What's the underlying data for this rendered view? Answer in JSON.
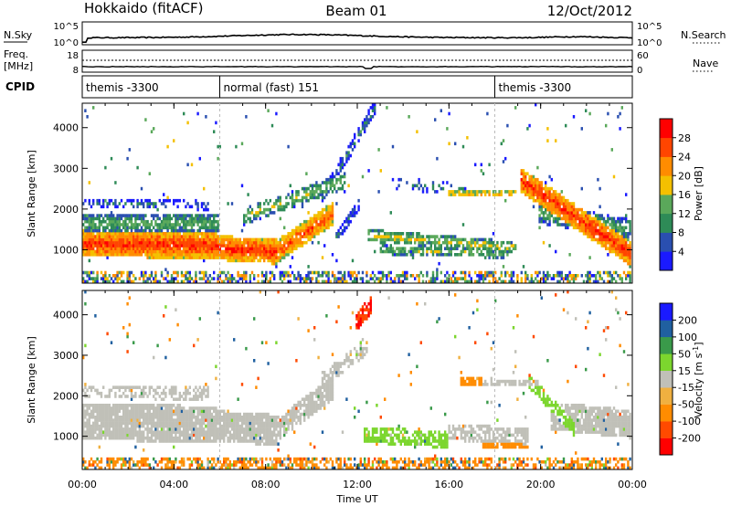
{
  "header": {
    "station": "Hokkaido (fitACF)",
    "beam": "Beam 01",
    "date": "12/Oct/2012"
  },
  "strip": {
    "nsky_label": "N.Sky",
    "nsky_top": "10^5",
    "nsky_bottom": "10^0",
    "nsearch_label": "N.Search",
    "nsearch_top": "10^5",
    "nsearch_bottom": "10^0",
    "freq_label": "Freq.",
    "freq_unit": "[MHz]",
    "freq_top": "18",
    "freq_bottom": "8",
    "nave_label": "Nave",
    "nave_top": "60",
    "nave_bottom": "0",
    "cpid_label": "CPID",
    "cpid_segments": [
      {
        "label": "themis -3300",
        "start_hour": 0
      },
      {
        "label": "normal (fast) 151",
        "start_hour": 6
      },
      {
        "label": "themis -3300",
        "start_hour": 18
      }
    ]
  },
  "colors": {
    "power": [
      "#1a1aff",
      "#2a4fb0",
      "#2e8b57",
      "#5aa85a",
      "#f4c000",
      "#ff8c00",
      "#ff4500",
      "#ff0000"
    ],
    "velocity": [
      "#ff0000",
      "#ff4a00",
      "#ff8c00",
      "#f0b040",
      "#c0c0b8",
      "#7cd62e",
      "#3a9a4a",
      "#2060a0",
      "#1a1aff"
    ]
  },
  "chart_data": [
    {
      "type": "heatmap",
      "panel": "power",
      "xlabel": "Time UT",
      "ylabel": "Slant Range [km]",
      "xlim": [
        0,
        24
      ],
      "ylim": [
        180,
        4600
      ],
      "x_ticks": [
        "00:00",
        "04:00",
        "08:00",
        "12:00",
        "16:00",
        "20:00",
        "00:00"
      ],
      "y_ticks": [
        "1000",
        "2000",
        "3000",
        "4000"
      ],
      "colorbar": {
        "label": "Power [dB]",
        "ticks": [
          "28",
          "24",
          "20",
          "16",
          "12",
          "8",
          "4"
        ],
        "range": [
          0,
          30
        ]
      }
    },
    {
      "type": "heatmap",
      "panel": "velocity",
      "xlabel": "Time UT",
      "ylabel": "Slant Range [km]",
      "xlim": [
        0,
        24
      ],
      "ylim": [
        180,
        4600
      ],
      "x_ticks": [
        "00:00",
        "04:00",
        "08:00",
        "12:00",
        "16:00",
        "20:00",
        "00:00"
      ],
      "y_ticks": [
        "1000",
        "2000",
        "3000",
        "4000"
      ],
      "colorbar": {
        "label": "Velocity [m s",
        "label_sup": "-1",
        "label_end": "]",
        "ticks": [
          "200",
          "100",
          "50",
          "15",
          "-15",
          "-50",
          "-100",
          "-200"
        ],
        "range": [
          -250,
          250
        ]
      }
    }
  ]
}
